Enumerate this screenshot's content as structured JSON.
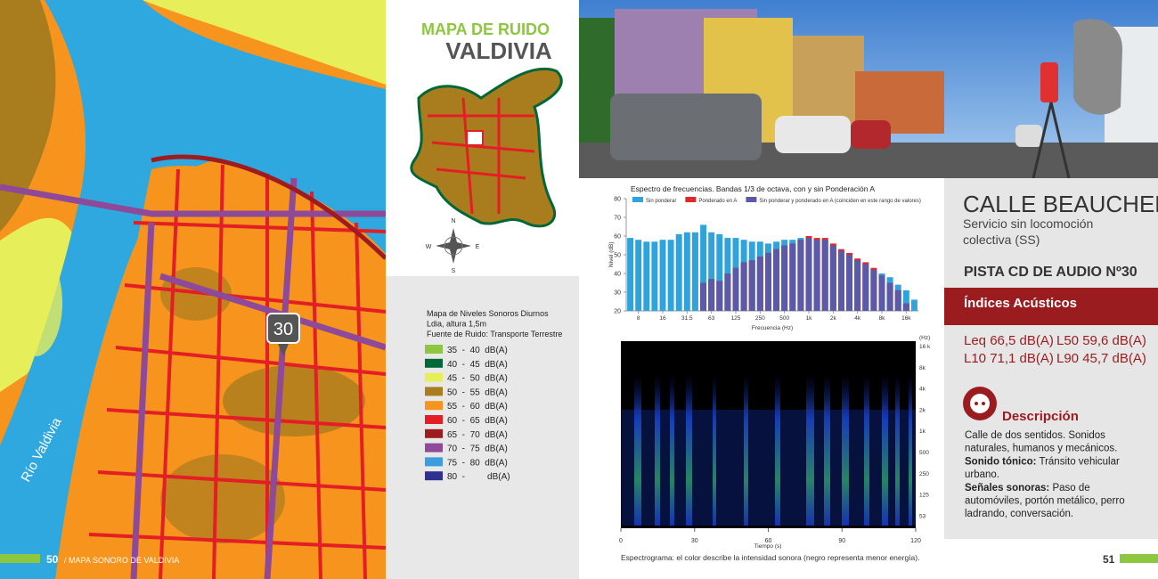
{
  "footer_left": {
    "page": "50",
    "section": "/ MAPA SONORO DE VALDIVIA"
  },
  "footer_right": {
    "page": "51"
  },
  "map": {
    "river_label": "Río Valdivia",
    "marker": "30"
  },
  "mini_map": {
    "title_top": "MAPA DE RUIDO",
    "title_bottom": "VALDIVIA",
    "compass": {
      "n": "N",
      "s": "S",
      "w": "W",
      "e": "E"
    }
  },
  "legend": {
    "lines": [
      "Mapa de Niveles Sonoros Diurnos",
      "Ldia, altura 1,5m",
      "Fuente de Ruido: Transporte Terrestre"
    ],
    "items": [
      {
        "label": "35  -  40  dB(A)",
        "color": "#8dc63f"
      },
      {
        "label": "40  -  45  dB(A)",
        "color": "#006838"
      },
      {
        "label": "45  -  50  dB(A)",
        "color": "#e6ee5a"
      },
      {
        "label": "50  -  55  dB(A)",
        "color": "#a97c1e"
      },
      {
        "label": "55  -  60  dB(A)",
        "color": "#f7941d"
      },
      {
        "label": "60  -  65  dB(A)",
        "color": "#e31e24"
      },
      {
        "label": "65  -  70  dB(A)",
        "color": "#9e1b20"
      },
      {
        "label": "70  -  75  dB(A)",
        "color": "#8e4a98"
      },
      {
        "label": "75  -  80  dB(A)",
        "color": "#3b9ddd"
      },
      {
        "label": "80  -         dB(A)",
        "color": "#2e3192"
      }
    ]
  },
  "chart_data": {
    "type": "bar",
    "title": "Espectro de frecuencias. Bandas 1/3 de octava, con y sin Ponderación A",
    "x_label": "Frecuencia (Hz)",
    "y_label": "Nivel (dB)",
    "overlap_label": "Sin ponderar y ponderado en A (coinciden en este rango de valores)",
    "overlap_color": "#5a5aa8",
    "categories": [
      null,
      "8",
      null,
      null,
      "16",
      null,
      null,
      "31.5",
      null,
      null,
      "63",
      null,
      null,
      "125",
      null,
      null,
      "250",
      null,
      null,
      "500",
      null,
      null,
      "1k",
      null,
      null,
      "2k",
      null,
      null,
      "4k",
      null,
      null,
      "8k",
      null,
      null,
      "16k",
      null
    ],
    "series": [
      {
        "name": "Sin ponderar",
        "color": "#2ea3dc",
        "values": [
          59,
          58,
          57,
          57,
          58,
          58,
          61,
          62,
          62,
          66,
          62,
          61,
          59,
          59,
          58,
          57,
          57,
          56,
          57,
          58,
          58,
          59,
          59,
          58,
          58,
          55,
          52,
          50,
          47,
          45,
          42,
          40,
          38,
          34,
          31,
          26
        ]
      },
      {
        "name": "Ponderado en A",
        "color": "#e3262c",
        "values": [
          null,
          null,
          null,
          null,
          null,
          null,
          null,
          null,
          null,
          35,
          37,
          36,
          40,
          43,
          46,
          47,
          49,
          51,
          53,
          55,
          56,
          58,
          60,
          59,
          59,
          56,
          53,
          51,
          48,
          46,
          43,
          39,
          35,
          31,
          24,
          null
        ]
      }
    ],
    "ylim": [
      20,
      80
    ],
    "yticks": [
      20,
      30,
      40,
      50,
      60,
      70,
      80
    ]
  },
  "spectrogram": {
    "x_label": "Tiempo (s)",
    "xticks": [
      "0",
      "30",
      "60",
      "90",
      "120"
    ],
    "y_unit": "(Hz)",
    "yticks": [
      "16 k",
      "8k",
      "4k",
      "2k",
      "1k",
      "500",
      "250",
      "125",
      "53"
    ],
    "caption": "Espectrograma: el color describe la intensidad sonora (negro representa menor energía)."
  },
  "info": {
    "street": "CALLE BEAUCHEF",
    "service": [
      "Servicio sin locomoción",
      "colectiva (SS)"
    ],
    "track": "PISTA CD DE AUDIO Nº30",
    "indices_title": "Índices Acústicos",
    "indices": [
      [
        "Leq 66,5 dB(A)",
        "L50 59,6 dB(A)"
      ],
      [
        "L10 71,1 dB(A)",
        "L90 45,7 dB(A)"
      ]
    ],
    "description_title": "Descripción",
    "description": {
      "intro": [
        "Calle de dos sentidos. Sonidos",
        "naturales, humanos y mecánicos."
      ],
      "tonic_label": "Sonido tónico:",
      "tonic": [
        "Tránsito vehicular",
        "urbano."
      ],
      "signals_label": "Señales sonoras:",
      "signals": [
        "Paso de",
        "automóviles, portón metálico, perro",
        "ladrando, conversación."
      ]
    }
  }
}
